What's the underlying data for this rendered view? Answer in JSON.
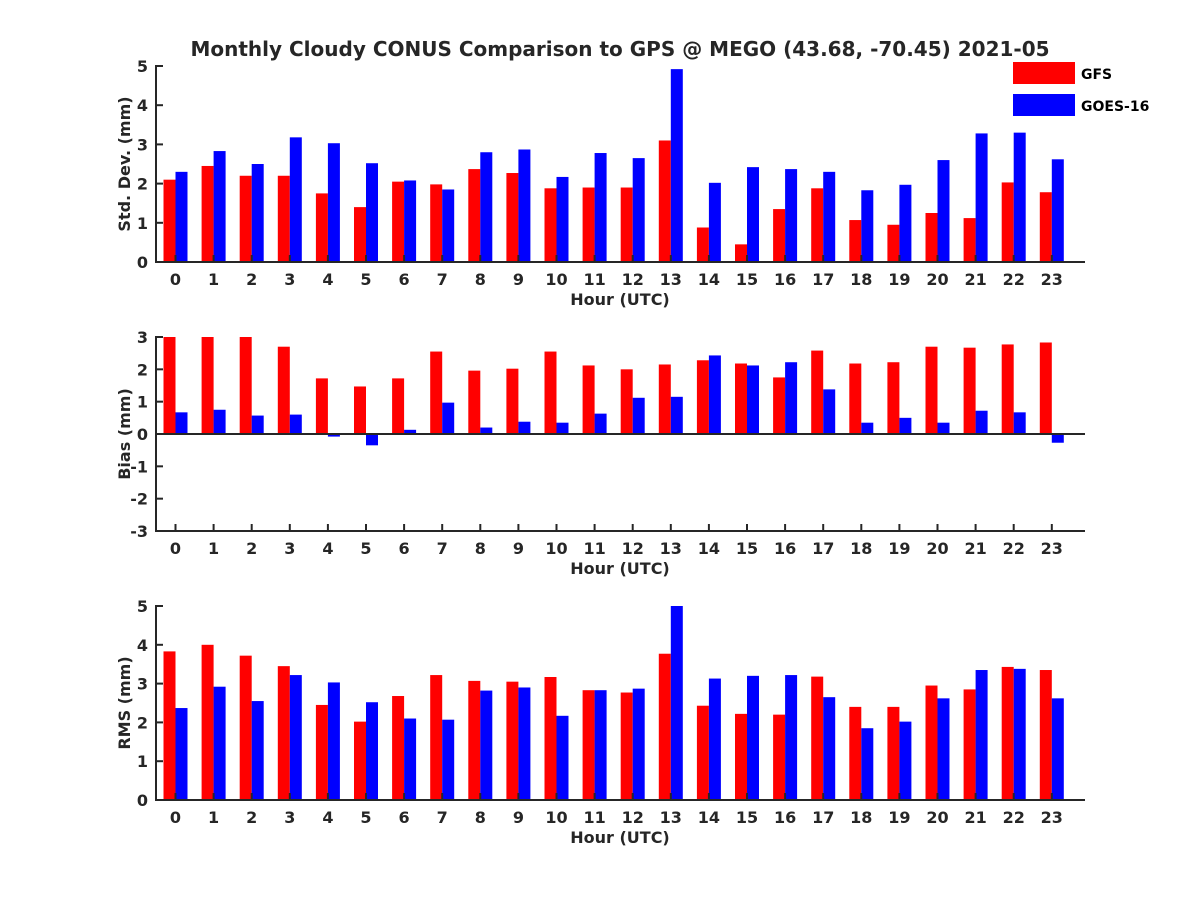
{
  "figure_title": "Monthly Cloudy CONUS Comparison to GPS @ MEGO (43.68, -70.45) 2021-05",
  "colors": {
    "GFS": "#ff0000",
    "GOES-16": "#0000ff",
    "axis": "#262626"
  },
  "legend": [
    {
      "name": "GFS",
      "color": "#ff0000"
    },
    {
      "name": "GOES-16",
      "color": "#0000ff"
    }
  ],
  "chart_data": [
    {
      "type": "bar",
      "title": "Monthly Cloudy CONUS Comparison to GPS @ MEGO (43.68, -70.45) 2021-05",
      "xlabel": "Hour (UTC)",
      "ylabel": "Std. Dev. (mm)",
      "ylim": [
        0,
        5
      ],
      "yticks": [
        0,
        1,
        2,
        3,
        4,
        5
      ],
      "categories": [
        "0",
        "1",
        "2",
        "3",
        "4",
        "5",
        "6",
        "7",
        "8",
        "9",
        "10",
        "11",
        "12",
        "13",
        "14",
        "15",
        "16",
        "17",
        "18",
        "19",
        "20",
        "21",
        "22",
        "23"
      ],
      "legend_position": "top-right",
      "grid": false,
      "series": [
        {
          "name": "GFS",
          "values": [
            2.1,
            2.45,
            2.2,
            2.2,
            1.75,
            1.4,
            2.05,
            1.98,
            2.37,
            2.27,
            1.88,
            1.9,
            1.9,
            3.1,
            0.88,
            0.45,
            1.35,
            1.88,
            1.07,
            0.95,
            1.25,
            1.12,
            2.03,
            1.78
          ]
        },
        {
          "name": "GOES-16",
          "values": [
            2.3,
            2.83,
            2.5,
            3.18,
            3.03,
            2.52,
            2.08,
            1.85,
            2.8,
            2.87,
            2.17,
            2.78,
            2.65,
            4.92,
            2.02,
            2.42,
            2.37,
            2.3,
            1.83,
            1.97,
            2.6,
            3.28,
            3.3,
            2.62
          ]
        }
      ]
    },
    {
      "type": "bar",
      "xlabel": "Hour (UTC)",
      "ylabel": "Bias (mm)",
      "ylim": [
        -3,
        3
      ],
      "yticks": [
        -3,
        -2,
        -1,
        0,
        1,
        2,
        3
      ],
      "categories": [
        "0",
        "1",
        "2",
        "3",
        "4",
        "5",
        "6",
        "7",
        "8",
        "9",
        "10",
        "11",
        "12",
        "13",
        "14",
        "15",
        "16",
        "17",
        "18",
        "19",
        "20",
        "21",
        "22",
        "23"
      ],
      "grid": false,
      "series": [
        {
          "name": "GFS",
          "values": [
            3.0,
            3.0,
            3.0,
            2.7,
            1.72,
            1.47,
            1.72,
            2.55,
            1.96,
            2.02,
            2.55,
            2.12,
            2.0,
            2.15,
            2.28,
            2.18,
            1.75,
            2.58,
            2.18,
            2.22,
            2.7,
            2.67,
            2.77,
            2.83
          ]
        },
        {
          "name": "GOES-16",
          "values": [
            0.67,
            0.75,
            0.57,
            0.6,
            -0.08,
            -0.35,
            0.13,
            0.97,
            0.2,
            0.38,
            0.35,
            0.63,
            1.12,
            1.15,
            2.43,
            2.12,
            2.22,
            1.38,
            0.35,
            0.5,
            0.35,
            0.72,
            0.67,
            -0.27
          ]
        }
      ]
    },
    {
      "type": "bar",
      "xlabel": "Hour (UTC)",
      "ylabel": "RMS (mm)",
      "ylim": [
        0,
        5
      ],
      "yticks": [
        0,
        1,
        2,
        3,
        4,
        5
      ],
      "categories": [
        "0",
        "1",
        "2",
        "3",
        "4",
        "5",
        "6",
        "7",
        "8",
        "9",
        "10",
        "11",
        "12",
        "13",
        "14",
        "15",
        "16",
        "17",
        "18",
        "19",
        "20",
        "21",
        "22",
        "23"
      ],
      "grid": false,
      "series": [
        {
          "name": "GFS",
          "values": [
            3.83,
            4.0,
            3.72,
            3.45,
            2.45,
            2.02,
            2.68,
            3.22,
            3.07,
            3.05,
            3.17,
            2.83,
            2.77,
            3.77,
            2.43,
            2.22,
            2.2,
            3.18,
            2.4,
            2.4,
            2.95,
            2.85,
            3.43,
            3.35
          ]
        },
        {
          "name": "GOES-16",
          "values": [
            2.37,
            2.92,
            2.55,
            3.22,
            3.03,
            2.52,
            2.1,
            2.07,
            2.82,
            2.9,
            2.17,
            2.83,
            2.87,
            5.0,
            3.13,
            3.2,
            3.22,
            2.65,
            1.85,
            2.02,
            2.62,
            3.35,
            3.38,
            2.62
          ]
        }
      ]
    }
  ]
}
